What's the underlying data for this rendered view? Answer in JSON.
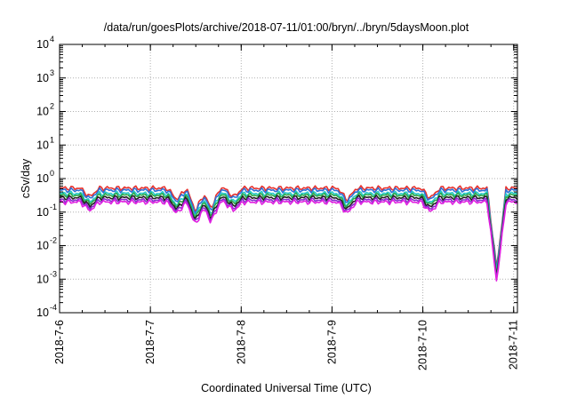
{
  "chart_data": {
    "type": "line",
    "title": "/data/run/goesPlots/archive/2018-07-11/01:00/bryn/../bryn/5daysMoon.plot",
    "xlabel": "Coordinated Universal Time (UTC)",
    "ylabel": "cSv/day",
    "y_scale": "log",
    "ylim": [
      0.0001,
      10000
    ],
    "y_ticks": [
      {
        "base": "10",
        "exp": "-4",
        "value": 0.0001
      },
      {
        "base": "10",
        "exp": "-3",
        "value": 0.001
      },
      {
        "base": "10",
        "exp": "-2",
        "value": 0.01
      },
      {
        "base": "10",
        "exp": "-1",
        "value": 0.1
      },
      {
        "base": "10",
        "exp": "0",
        "value": 1
      },
      {
        "base": "10",
        "exp": "1",
        "value": 10
      },
      {
        "base": "10",
        "exp": "2",
        "value": 100
      },
      {
        "base": "10",
        "exp": "3",
        "value": 1000
      },
      {
        "base": "10",
        "exp": "4",
        "value": 10000
      }
    ],
    "xlim": [
      "2018-07-06",
      "2018-07-11 01:00"
    ],
    "x_ticks": [
      "2018-7-6",
      "2018-7-7",
      "2018-7-8",
      "2018-7-9",
      "2018-7-10",
      "2018-7-11"
    ],
    "grid": true,
    "series": [
      {
        "color": "#e8312c",
        "level": 0.52
      },
      {
        "color": "#2f6fd6",
        "level": 0.45
      },
      {
        "color": "#26c9c9",
        "level": 0.36
      },
      {
        "color": "#2aa84a",
        "level": 0.32
      },
      {
        "color": "#222222",
        "level": 0.27
      },
      {
        "color": "#8a2ad0",
        "level": 0.23
      },
      {
        "color": "#e020e0",
        "level": 0.2
      }
    ],
    "events": [
      {
        "x": "2018-07-06 08:00",
        "factor": 0.55
      },
      {
        "x": "2018-07-07 07:00",
        "factor": 0.45
      },
      {
        "x": "2018-07-07 12:00",
        "factor": 0.2
      },
      {
        "x": "2018-07-07 16:00",
        "factor": 0.25
      },
      {
        "x": "2018-07-07 22:00",
        "factor": 0.55
      },
      {
        "x": "2018-07-09 04:00",
        "factor": 0.45
      },
      {
        "x": "2018-07-10 02:00",
        "factor": 0.5
      },
      {
        "x": "2018-07-10 19:30",
        "factor": 0.004
      }
    ]
  }
}
